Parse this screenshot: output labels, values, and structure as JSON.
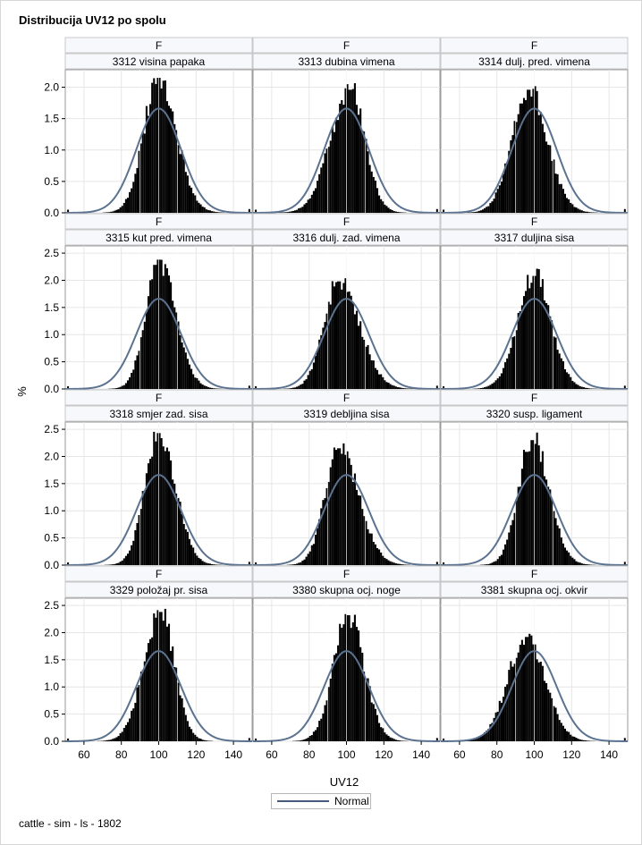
{
  "title": "Distribucija UV12 po spolu",
  "footnote": "cattle - sim - ls - 1802",
  "legend": {
    "label": "Normal",
    "line_color": "#445b7f"
  },
  "colors": {
    "bars": "#000000",
    "normal_curve": "#5b7290",
    "header_bg": "#f7f8fc",
    "grid": "#e6e6e6"
  },
  "chart_data": {
    "type": "histogram-panel",
    "xlabel": "UV12",
    "ylabel": "%",
    "xlim": [
      50,
      150
    ],
    "x_ticks": [
      60,
      80,
      100,
      120,
      140
    ],
    "normal_overlay": {
      "mean": 100,
      "sd": 12,
      "peak_percent": 1.66
    },
    "rows": [
      {
        "ylim": [
          0,
          2.25
        ],
        "y_ticks": [
          0.0,
          0.5,
          1.0,
          1.5,
          2.0
        ]
      },
      {
        "ylim": [
          0,
          2.6
        ],
        "y_ticks": [
          0.0,
          0.5,
          1.0,
          1.5,
          2.0,
          2.5
        ]
      },
      {
        "ylim": [
          0,
          2.6
        ],
        "y_ticks": [
          0.0,
          0.5,
          1.0,
          1.5,
          2.0,
          2.5
        ]
      },
      {
        "ylim": [
          0,
          2.6
        ],
        "y_ticks": [
          0.0,
          0.5,
          1.0,
          1.5,
          2.0,
          2.5
        ]
      }
    ],
    "panels": [
      {
        "group": "F",
        "trait": "3312 visina papaka",
        "peak_x": 100,
        "peak_percent": 2.15,
        "sd_left": 8.0,
        "sd_right": 9.5
      },
      {
        "group": "F",
        "trait": "3313 dubina vimena",
        "peak_x": 102,
        "peak_percent": 1.96,
        "sd_left": 10.5,
        "sd_right": 8.0
      },
      {
        "group": "F",
        "trait": "3314 dulj. pred. vimena",
        "peak_x": 97,
        "peak_percent": 1.96,
        "sd_left": 9.0,
        "sd_right": 10.0
      },
      {
        "group": "F",
        "trait": "3315 kut pred. vimena",
        "peak_x": 100,
        "peak_percent": 2.38,
        "sd_left": 7.0,
        "sd_right": 9.0
      },
      {
        "group": "F",
        "trait": "3316 dulj. zad. vimena",
        "peak_x": 96,
        "peak_percent": 1.98,
        "sd_left": 8.0,
        "sd_right": 11.0
      },
      {
        "group": "F",
        "trait": "3317 duljina sisa",
        "peak_x": 100,
        "peak_percent": 2.08,
        "sd_left": 9.0,
        "sd_right": 9.0
      },
      {
        "group": "F",
        "trait": "3318 smjer zad. sisa",
        "peak_x": 100,
        "peak_percent": 2.43,
        "sd_left": 7.5,
        "sd_right": 9.0
      },
      {
        "group": "F",
        "trait": "3319 debljina sisa",
        "peak_x": 96,
        "peak_percent": 2.15,
        "sd_left": 7.5,
        "sd_right": 10.5
      },
      {
        "group": "F",
        "trait": "3320 susp. ligament",
        "peak_x": 99,
        "peak_percent": 2.3,
        "sd_left": 7.5,
        "sd_right": 9.0
      },
      {
        "group": "F",
        "trait": "3329 položaj pr. sisa",
        "peak_x": 101,
        "peak_percent": 2.38,
        "sd_left": 9.0,
        "sd_right": 7.5
      },
      {
        "group": "F",
        "trait": "3380 skupna ocj. noge",
        "peak_x": 101,
        "peak_percent": 2.32,
        "sd_left": 8.0,
        "sd_right": 8.5
      },
      {
        "group": "F",
        "trait": "3381 skupna ocj. okvir",
        "peak_x": 96,
        "peak_percent": 1.92,
        "sd_left": 10.0,
        "sd_right": 10.0
      }
    ]
  }
}
